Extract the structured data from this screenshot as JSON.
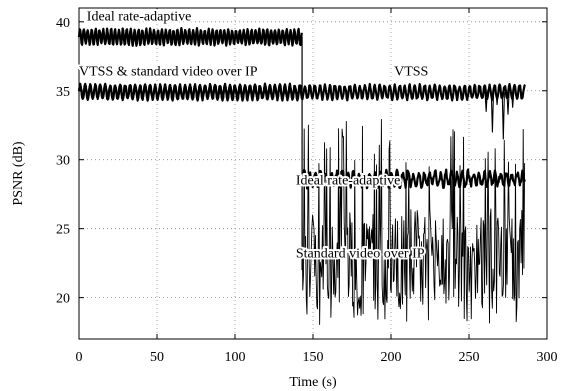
{
  "chart_data": {
    "type": "line",
    "xlabel": "Time (s)",
    "ylabel": "PSNR (dB)",
    "xlim": [
      0,
      300
    ],
    "ylim": [
      17,
      41
    ],
    "xticks": [
      0,
      50,
      100,
      150,
      200,
      250,
      300
    ],
    "yticks": [
      20,
      25,
      30,
      35,
      40
    ],
    "grid": true,
    "series": [
      {
        "name": "Ideal rate-adaptive",
        "segments": [
          {
            "x_start": 0,
            "x_end": 143,
            "mean": 38.9,
            "amplitude": 0.55,
            "period": 2.5,
            "noise": 0.1
          },
          {
            "x_start": 143,
            "x_end": 286,
            "mean": 28.6,
            "amplitude": 0.45,
            "period": 3.5,
            "noise": 0.25
          }
        ]
      },
      {
        "name": "VTSS",
        "segments": [
          {
            "x_start": 0,
            "x_end": 286,
            "mean": 34.9,
            "amplitude": 0.5,
            "period": 3.2,
            "noise": 0.12
          }
        ],
        "dips": [
          {
            "x": 261,
            "y": 33.5
          },
          {
            "x": 265,
            "y": 32.0
          },
          {
            "x": 268,
            "y": 34.0
          },
          {
            "x": 272,
            "y": 31.5
          },
          {
            "x": 275,
            "y": 33.3
          },
          {
            "x": 278,
            "y": 33.8
          }
        ]
      },
      {
        "name": "Standard video over IP",
        "segments": [
          {
            "x_start": 0,
            "x_end": 143,
            "mean": 34.9,
            "amplitude": 0.5,
            "period": 3.2,
            "noise": 0.12
          },
          {
            "x_start": 143,
            "x_end": 286,
            "mean": 23,
            "range": [
              18,
              33
            ]
          }
        ]
      }
    ],
    "annotations": [
      {
        "text": "Ideal rate-adaptive",
        "x": 5,
        "y": 40.1
      },
      {
        "text": "VTSS & standard video over IP",
        "x": 0,
        "y": 36.1
      },
      {
        "text": "VTSS",
        "x": 202,
        "y": 36.1
      },
      {
        "text": "Ideal rate-adaptive",
        "x": 139,
        "y": 28.2
      },
      {
        "text": "Standard video over IP",
        "x": 139,
        "y": 22.9
      }
    ]
  }
}
